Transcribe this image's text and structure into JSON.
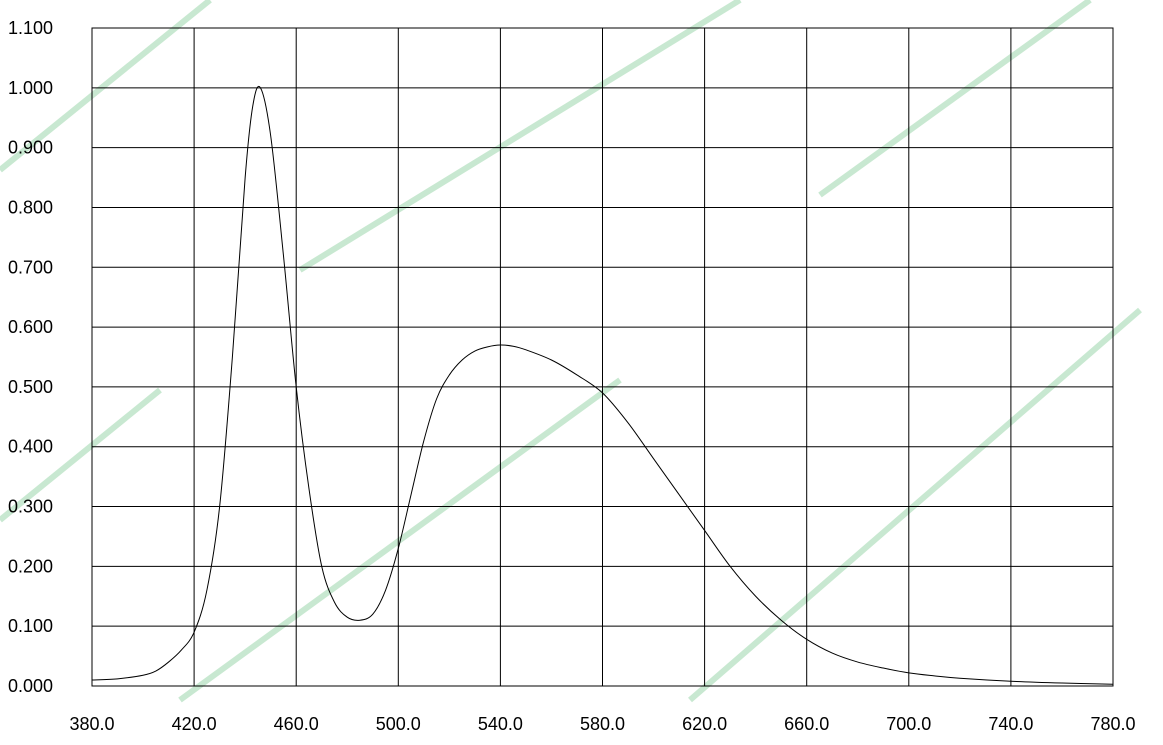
{
  "chart_data": {
    "type": "line",
    "title": "",
    "xlabel": "",
    "ylabel": "",
    "xlim": [
      380,
      780
    ],
    "ylim": [
      0,
      1.1
    ],
    "x_ticks": [
      "380.0",
      "420.0",
      "460.0",
      "500.0",
      "540.0",
      "580.0",
      "620.0",
      "660.0",
      "700.0",
      "740.0",
      "780.0"
    ],
    "y_ticks": [
      "0.000",
      "0.100",
      "0.200",
      "0.300",
      "0.400",
      "0.500",
      "0.600",
      "0.700",
      "0.800",
      "0.900",
      "1.000",
      "1.100"
    ],
    "grid": true,
    "legend": "none",
    "series": [
      {
        "color": "#000000",
        "x": [
          380,
          390,
          400,
          405,
          410,
          415,
          420,
          425,
          430,
          435,
          440,
          443,
          446,
          450,
          455,
          460,
          465,
          470,
          475,
          480,
          485,
          490,
          495,
          500,
          505,
          510,
          515,
          520,
          525,
          530,
          535,
          540,
          545,
          550,
          560,
          570,
          580,
          590,
          600,
          610,
          620,
          630,
          640,
          650,
          660,
          670,
          680,
          690,
          700,
          710,
          720,
          740,
          760,
          780
        ],
        "y": [
          0.01,
          0.012,
          0.018,
          0.025,
          0.04,
          0.06,
          0.09,
          0.16,
          0.3,
          0.55,
          0.85,
          0.97,
          1.0,
          0.92,
          0.72,
          0.5,
          0.33,
          0.2,
          0.14,
          0.115,
          0.11,
          0.12,
          0.16,
          0.23,
          0.32,
          0.41,
          0.48,
          0.52,
          0.545,
          0.56,
          0.567,
          0.57,
          0.568,
          0.562,
          0.545,
          0.52,
          0.49,
          0.44,
          0.38,
          0.32,
          0.26,
          0.2,
          0.15,
          0.11,
          0.078,
          0.055,
          0.04,
          0.03,
          0.022,
          0.017,
          0.013,
          0.008,
          0.005,
          0.003
        ]
      }
    ]
  }
}
